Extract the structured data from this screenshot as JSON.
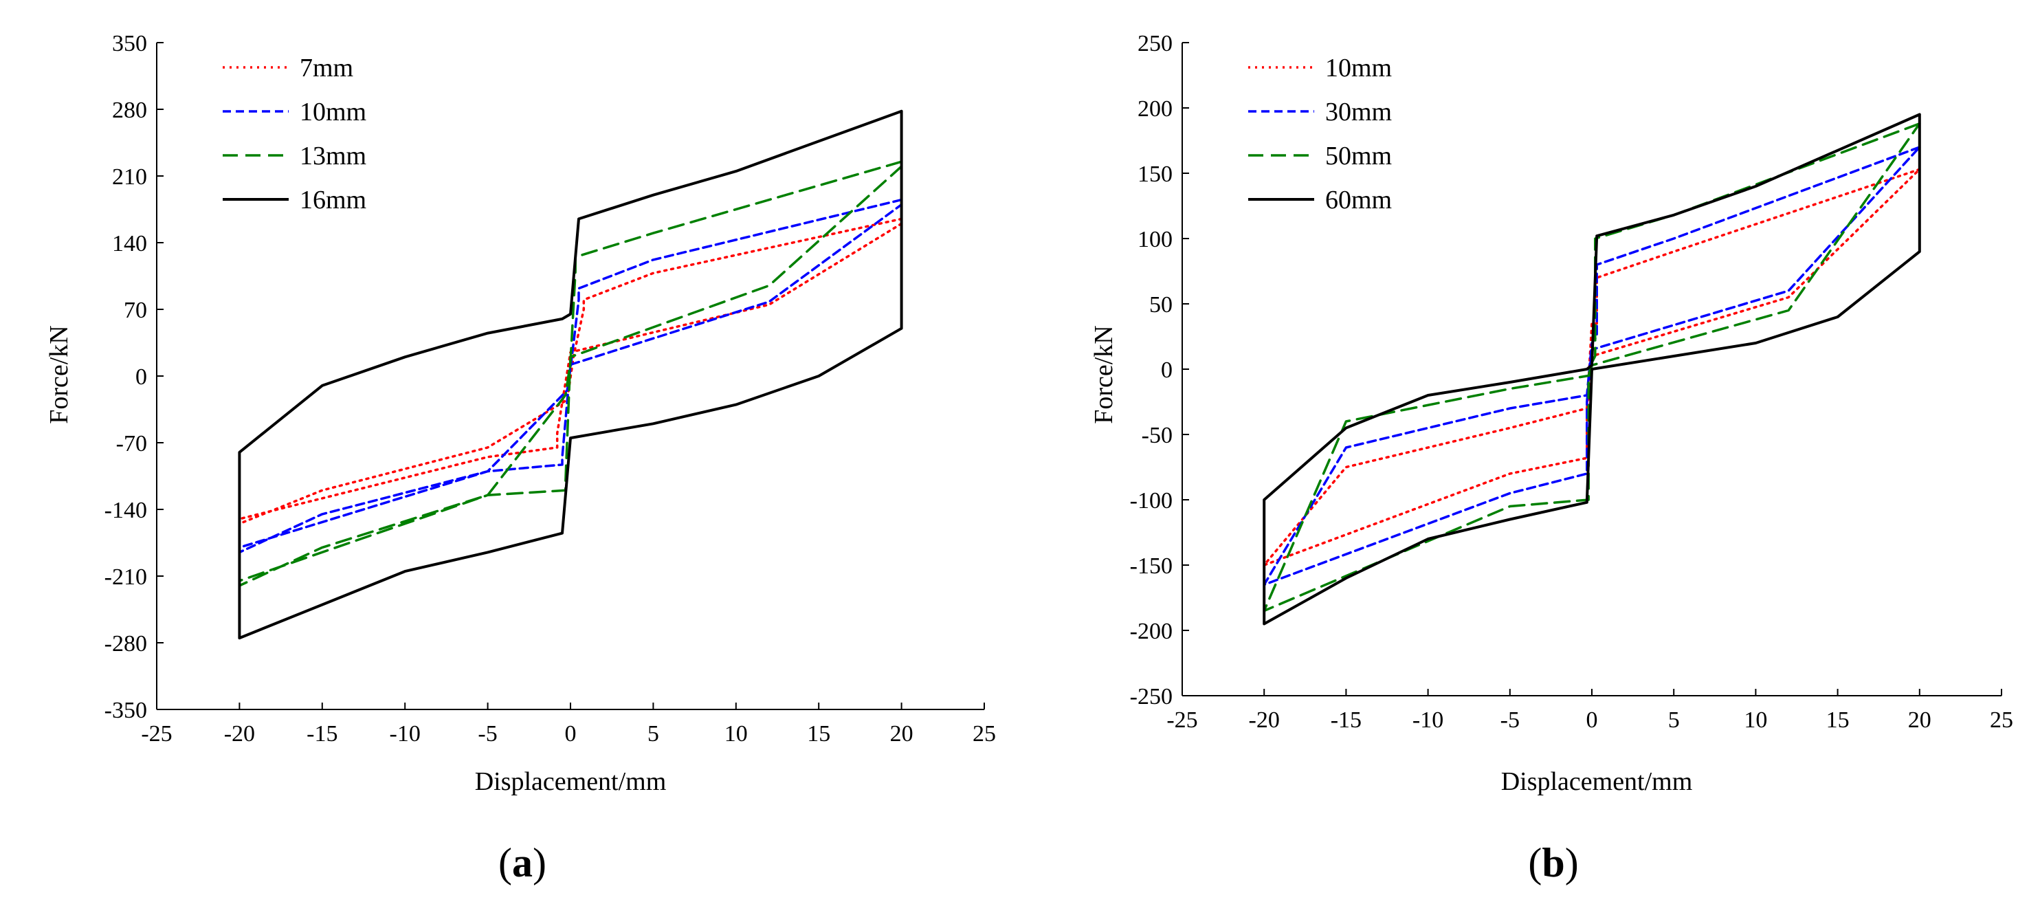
{
  "chart_data": [
    {
      "type": "line",
      "panel_label": "a",
      "title": "",
      "xlabel": "Displacement/mm",
      "ylabel": "Force/kN",
      "xlim": [
        -25,
        25
      ],
      "ylim": [
        -350,
        350
      ],
      "xticks": [
        -25,
        -20,
        -15,
        -10,
        -5,
        0,
        5,
        10,
        15,
        20,
        25
      ],
      "yticks": [
        -350,
        -280,
        -210,
        -140,
        -70,
        0,
        70,
        140,
        210,
        280,
        350
      ],
      "legend_position": "top-left",
      "series": [
        {
          "name": "7mm",
          "color": "#ff0000",
          "style": "dotted",
          "x": [
            20,
            5,
            0.8,
            0.8,
            0.2,
            -0.2,
            -5,
            -15,
            -20,
            -20,
            -5,
            -0.8,
            -0.8,
            0,
            12,
            20
          ],
          "y": [
            165,
            108,
            80,
            70,
            22,
            -25,
            -75,
            -120,
            -155,
            -150,
            -85,
            -75,
            -60,
            25,
            75,
            160
          ]
        },
        {
          "name": "10mm",
          "color": "#0000ff",
          "style": "dashed",
          "x": [
            20,
            5,
            0.5,
            0.5,
            0,
            -0.2,
            -5,
            -15,
            -20,
            -20,
            -5,
            -0.5,
            -0.5,
            0,
            12,
            20
          ],
          "y": [
            185,
            122,
            92,
            80,
            8,
            -15,
            -100,
            -145,
            -185,
            -180,
            -100,
            -93,
            -85,
            12,
            78,
            180
          ]
        },
        {
          "name": "13mm",
          "color": "#008000",
          "style": "longdash",
          "x": [
            20,
            5,
            0.3,
            0.3,
            0,
            -0.3,
            -5,
            -15,
            -20,
            -20,
            -5,
            -0.3,
            -0.3,
            0,
            12,
            20
          ],
          "y": [
            225,
            150,
            125,
            110,
            15,
            -20,
            -125,
            -180,
            -220,
            -215,
            -125,
            -120,
            -110,
            20,
            95,
            220
          ]
        },
        {
          "name": "16mm",
          "color": "#000000",
          "style": "solid",
          "x": [
            20,
            10,
            5,
            0.5,
            0,
            -0.5,
            -5,
            -10,
            -15,
            -20,
            -20,
            -15,
            -10,
            -5,
            -0.5,
            0,
            5,
            10,
            15,
            20,
            20
          ],
          "y": [
            278,
            215,
            190,
            165,
            65,
            60,
            45,
            20,
            -10,
            -80,
            -275,
            -240,
            -205,
            -185,
            -165,
            -65,
            -50,
            -30,
            0,
            50,
            278
          ]
        }
      ]
    },
    {
      "type": "line",
      "panel_label": "b",
      "title": "",
      "xlabel": "Displacement/mm",
      "ylabel": "Force/kN",
      "xlim": [
        -25,
        25
      ],
      "ylim": [
        -250,
        250
      ],
      "xticks": [
        -25,
        -20,
        -15,
        -10,
        -5,
        0,
        5,
        10,
        15,
        20,
        25
      ],
      "yticks": [
        -250,
        -200,
        -150,
        -100,
        -50,
        0,
        50,
        100,
        150,
        200,
        250
      ],
      "legend_position": "top-left",
      "series": [
        {
          "name": "10mm",
          "color": "#ff0000",
          "style": "dotted",
          "x": [
            20,
            5,
            0.3,
            0.3,
            0,
            -0.3,
            -5,
            -15,
            -20,
            -20,
            -5,
            -0.3,
            -0.3,
            0,
            12,
            20
          ],
          "y": [
            153,
            90,
            70,
            35,
            35,
            -30,
            -45,
            -75,
            -150,
            -150,
            -80,
            -68,
            -35,
            10,
            55,
            153
          ]
        },
        {
          "name": "30mm",
          "color": "#0000ff",
          "style": "dashed",
          "x": [
            20,
            5,
            0.3,
            0.3,
            0,
            -0.3,
            -5,
            -15,
            -20,
            -20,
            -5,
            -0.3,
            -0.3,
            0,
            12,
            20
          ],
          "y": [
            170,
            100,
            80,
            25,
            20,
            -20,
            -30,
            -60,
            -165,
            -165,
            -95,
            -80,
            -25,
            15,
            60,
            170
          ]
        },
        {
          "name": "50mm",
          "color": "#008000",
          "style": "longdash",
          "x": [
            20,
            5,
            0.2,
            0.2,
            0,
            -0.2,
            -5,
            -15,
            -20,
            -20,
            -5,
            -0.2,
            -0.2,
            0,
            12,
            20
          ],
          "y": [
            188,
            118,
            100,
            10,
            5,
            -5,
            -15,
            -40,
            -185,
            -185,
            -105,
            -100,
            -10,
            3,
            45,
            188
          ]
        },
        {
          "name": "60mm",
          "color": "#000000",
          "style": "solid",
          "x": [
            20,
            10,
            5,
            0.3,
            0,
            -0.3,
            -5,
            -10,
            -15,
            -20,
            -20,
            -15,
            -10,
            -5,
            -0.3,
            0,
            5,
            10,
            15,
            20,
            20
          ],
          "y": [
            195,
            140,
            118,
            102,
            3,
            0,
            -10,
            -20,
            -45,
            -100,
            -195,
            -160,
            -130,
            -115,
            -102,
            0,
            10,
            20,
            40,
            90,
            195
          ]
        }
      ]
    }
  ]
}
